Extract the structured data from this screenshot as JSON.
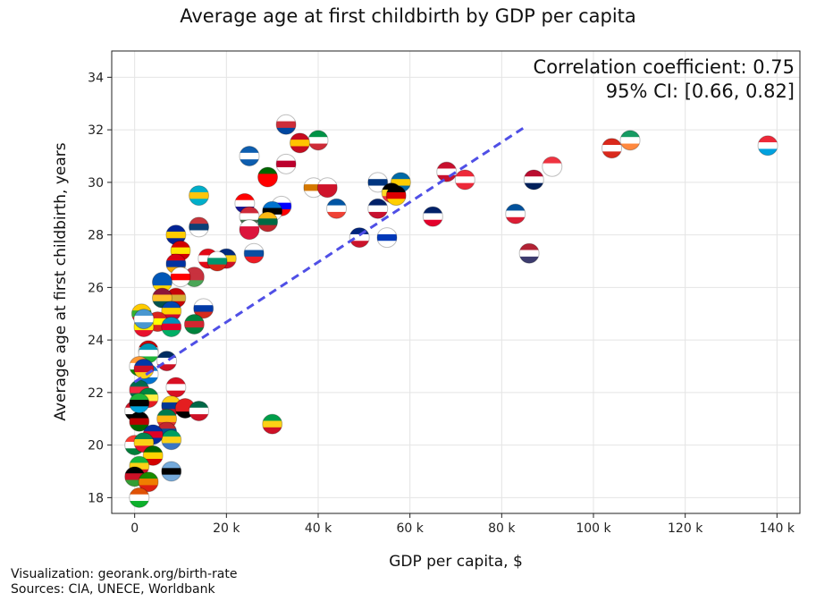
{
  "chart_data": {
    "type": "scatter",
    "title": "Average age at first childbirth by GDP per capita",
    "xlabel": "GDP per capita, $",
    "ylabel": "Average age at first childbirth, years",
    "xlim": [
      -5000,
      145000
    ],
    "ylim": [
      17.4,
      35.0
    ],
    "x_ticks": [
      0,
      20000,
      40000,
      60000,
      80000,
      100000,
      120000,
      140000
    ],
    "x_tick_labels": [
      "0",
      "20 k",
      "40 k",
      "60 k",
      "80 k",
      "100 k",
      "120 k",
      "140 k"
    ],
    "y_ticks": [
      18,
      20,
      22,
      24,
      26,
      28,
      30,
      32,
      34
    ],
    "y_tick_labels": [
      "18",
      "20",
      "22",
      "24",
      "26",
      "28",
      "30",
      "32",
      "34"
    ],
    "grid": true,
    "annotation": [
      "Correlation coefficient: 0.75",
      "95% CI: [0.66, 0.82]"
    ],
    "trendline": {
      "x": [
        0,
        85000
      ],
      "y": [
        22.4,
        32.1
      ],
      "color": "#4f4fe6",
      "style": "dashed"
    },
    "points": [
      {
        "x": 33000,
        "y": 32.2,
        "name": "South Korea",
        "colors": [
          "#ffffff",
          "#cd2e3a",
          "#0047a0"
        ]
      },
      {
        "x": 40000,
        "y": 31.6,
        "name": "Italy",
        "colors": [
          "#009246",
          "#ffffff",
          "#ce2b37"
        ]
      },
      {
        "x": 36000,
        "y": 31.5,
        "name": "Spain",
        "colors": [
          "#c60b1e",
          "#ffc400",
          "#c60b1e"
        ]
      },
      {
        "x": 25000,
        "y": 31.0,
        "name": "Greece",
        "colors": [
          "#0d5eaf",
          "#ffffff",
          "#0d5eaf"
        ]
      },
      {
        "x": 33000,
        "y": 30.7,
        "name": "Japan",
        "colors": [
          "#ffffff",
          "#bc002d",
          "#ffffff"
        ]
      },
      {
        "x": 29000,
        "y": 30.2,
        "name": "Portugal",
        "colors": [
          "#006600",
          "#ff0000",
          "#ff0000"
        ]
      },
      {
        "x": 39000,
        "y": 29.8,
        "name": "Cyprus",
        "colors": [
          "#ffffff",
          "#d57800",
          "#ffffff"
        ]
      },
      {
        "x": 42000,
        "y": 29.8,
        "name": "Malta",
        "colors": [
          "#ffffff",
          "#cf142b",
          "#cf142b"
        ]
      },
      {
        "x": 14000,
        "y": 29.5,
        "name": "Kazakhstan",
        "colors": [
          "#00afca",
          "#fec50c",
          "#00afca"
        ]
      },
      {
        "x": 24000,
        "y": 29.2,
        "name": "Croatia",
        "colors": [
          "#ff0000",
          "#ffffff",
          "#171796"
        ]
      },
      {
        "x": 32000,
        "y": 29.1,
        "name": "Slovenia",
        "colors": [
          "#ffffff",
          "#0000ff",
          "#ff0000"
        ]
      },
      {
        "x": 30000,
        "y": 28.9,
        "name": "Estonia",
        "colors": [
          "#0072ce",
          "#000000",
          "#ffffff"
        ]
      },
      {
        "x": 25000,
        "y": 28.7,
        "name": "Hungary",
        "colors": [
          "#ce2939",
          "#ffffff",
          "#477050"
        ]
      },
      {
        "x": 44000,
        "y": 29.0,
        "name": "France",
        "colors": [
          "#0055a4",
          "#ffffff",
          "#ef4135"
        ]
      },
      {
        "x": 53000,
        "y": 30.0,
        "name": "Finland",
        "colors": [
          "#ffffff",
          "#003580",
          "#ffffff"
        ]
      },
      {
        "x": 58000,
        "y": 30.0,
        "name": "Sweden",
        "colors": [
          "#006aa7",
          "#fecc00",
          "#006aa7"
        ]
      },
      {
        "x": 56000,
        "y": 29.6,
        "name": "Belgium",
        "colors": [
          "#000000",
          "#fdda24",
          "#ef3340"
        ]
      },
      {
        "x": 57000,
        "y": 29.5,
        "name": "Germany",
        "colors": [
          "#000000",
          "#dd0000",
          "#ffce00"
        ]
      },
      {
        "x": 53000,
        "y": 29.0,
        "name": "United Kingdom",
        "colors": [
          "#012169",
          "#ffffff",
          "#c8102e"
        ]
      },
      {
        "x": 68000,
        "y": 30.4,
        "name": "Denmark",
        "colors": [
          "#c8102e",
          "#ffffff",
          "#c8102e"
        ]
      },
      {
        "x": 72000,
        "y": 30.1,
        "name": "Austria",
        "colors": [
          "#ed2939",
          "#ffffff",
          "#ed2939"
        ]
      },
      {
        "x": 87000,
        "y": 30.1,
        "name": "Norway",
        "colors": [
          "#ba0c2f",
          "#ffffff",
          "#00205b"
        ]
      },
      {
        "x": 91000,
        "y": 30.6,
        "name": "Singapore",
        "colors": [
          "#ef3340",
          "#ffffff",
          "#ffffff"
        ]
      },
      {
        "x": 104000,
        "y": 31.3,
        "name": "Switzerland",
        "colors": [
          "#da291c",
          "#ffffff",
          "#da291c"
        ]
      },
      {
        "x": 108000,
        "y": 31.6,
        "name": "Ireland",
        "colors": [
          "#169b62",
          "#ffffff",
          "#ff883e"
        ]
      },
      {
        "x": 138000,
        "y": 31.4,
        "name": "Luxembourg",
        "colors": [
          "#ed2939",
          "#ffffff",
          "#00a1de"
        ]
      },
      {
        "x": 65000,
        "y": 28.7,
        "name": "Australia",
        "colors": [
          "#012169",
          "#ffffff",
          "#e4002b"
        ]
      },
      {
        "x": 83000,
        "y": 28.8,
        "name": "Iceland",
        "colors": [
          "#02529c",
          "#ffffff",
          "#dc1e35"
        ]
      },
      {
        "x": 86000,
        "y": 27.3,
        "name": "United States",
        "colors": [
          "#b22234",
          "#ffffff",
          "#3c3b6e"
        ]
      },
      {
        "x": 49000,
        "y": 27.9,
        "name": "New Zealand",
        "colors": [
          "#00247d",
          "#ffffff",
          "#cc142b"
        ]
      },
      {
        "x": 55000,
        "y": 27.9,
        "name": "Israel",
        "colors": [
          "#ffffff",
          "#0038b8",
          "#ffffff"
        ]
      },
      {
        "x": 29000,
        "y": 28.5,
        "name": "Lithuania",
        "colors": [
          "#fdb913",
          "#006a44",
          "#c1272d"
        ]
      },
      {
        "x": 25000,
        "y": 28.2,
        "name": "Poland",
        "colors": [
          "#ffffff",
          "#dc143c",
          "#dc143c"
        ]
      },
      {
        "x": 26000,
        "y": 27.3,
        "name": "Slovakia",
        "colors": [
          "#ffffff",
          "#0b4ea2",
          "#ee1c25"
        ]
      },
      {
        "x": 20000,
        "y": 27.1,
        "name": "Romania",
        "colors": [
          "#002b7f",
          "#fcd116",
          "#ce1126"
        ]
      },
      {
        "x": 16000,
        "y": 27.1,
        "name": "Turkey",
        "colors": [
          "#e30a17",
          "#ffffff",
          "#e30a17"
        ]
      },
      {
        "x": 18000,
        "y": 27.0,
        "name": "Bulgaria",
        "colors": [
          "#ffffff",
          "#00966e",
          "#d62612"
        ]
      },
      {
        "x": 14000,
        "y": 28.3,
        "name": "Serbia",
        "colors": [
          "#c6363c",
          "#0c4076",
          "#ffffff"
        ]
      },
      {
        "x": 9000,
        "y": 28.0,
        "name": "Bosnia",
        "colors": [
          "#002395",
          "#fecb00",
          "#002395"
        ]
      },
      {
        "x": 10000,
        "y": 27.4,
        "name": "North Macedonia",
        "colors": [
          "#d20000",
          "#ffe600",
          "#d20000"
        ]
      },
      {
        "x": 9000,
        "y": 26.9,
        "name": "Armenia",
        "colors": [
          "#d90012",
          "#0033a0",
          "#f2a800"
        ]
      },
      {
        "x": 13000,
        "y": 26.4,
        "name": "Belarus",
        "colors": [
          "#c8313e",
          "#c8313e",
          "#4aa657"
        ]
      },
      {
        "x": 10000,
        "y": 26.4,
        "name": "Georgia",
        "colors": [
          "#ffffff",
          "#ff0000",
          "#ffffff"
        ]
      },
      {
        "x": 6000,
        "y": 26.2,
        "name": "Ukraine",
        "colors": [
          "#0057b7",
          "#0057b7",
          "#ffd700"
        ]
      },
      {
        "x": 9000,
        "y": 25.6,
        "name": "Montenegro",
        "colors": [
          "#c40308",
          "#d4af37",
          "#c40308"
        ]
      },
      {
        "x": 6000,
        "y": 25.6,
        "name": "Sri Lanka",
        "colors": [
          "#8d153a",
          "#ffbe29",
          "#00534e"
        ]
      },
      {
        "x": 15000,
        "y": 25.2,
        "name": "Russia",
        "colors": [
          "#ffffff",
          "#0039a6",
          "#d52b1e"
        ]
      },
      {
        "x": 8000,
        "y": 25.1,
        "name": "Moldova",
        "colors": [
          "#0046ae",
          "#ffd200",
          "#cc092f"
        ]
      },
      {
        "x": 1500,
        "y": 25.0,
        "name": "Myanmar",
        "colors": [
          "#fecb00",
          "#34b233",
          "#ea2839"
        ]
      },
      {
        "x": 5000,
        "y": 24.7,
        "name": "Vietnam",
        "colors": [
          "#da251d",
          "#ffff00",
          "#da251d"
        ]
      },
      {
        "x": 13000,
        "y": 24.6,
        "name": "Turkmenistan",
        "colors": [
          "#00843d",
          "#d22630",
          "#00843d"
        ]
      },
      {
        "x": 8000,
        "y": 24.5,
        "name": "Azerbaijan",
        "colors": [
          "#0092bc",
          "#e4002b",
          "#00af66"
        ]
      },
      {
        "x": 2000,
        "y": 24.5,
        "name": "Kyrgyzstan",
        "colors": [
          "#e8112d",
          "#ffef00",
          "#e8112d"
        ]
      },
      {
        "x": 3000,
        "y": 23.6,
        "name": "Tajikistan",
        "colors": [
          "#cc0000",
          "#ffffff",
          "#006600"
        ]
      },
      {
        "x": 3000,
        "y": 23.5,
        "name": "Uzbekistan",
        "colors": [
          "#0099b5",
          "#ffffff",
          "#1eb53a"
        ]
      },
      {
        "x": 7000,
        "y": 23.2,
        "name": "Dominican Republic",
        "colors": [
          "#002d62",
          "#ffffff",
          "#ce1126"
        ]
      },
      {
        "x": 1000,
        "y": 23.0,
        "name": "India",
        "colors": [
          "#ff9933",
          "#ffffff",
          "#138808"
        ]
      },
      {
        "x": 3000,
        "y": 22.7,
        "name": "Honduras",
        "colors": [
          "#0073cf",
          "#ffffff",
          "#0073cf"
        ]
      },
      {
        "x": 1000,
        "y": 22.1,
        "name": "Bangladesh",
        "colors": [
          "#006a4e",
          "#f42a41",
          "#006a4e"
        ]
      },
      {
        "x": 9000,
        "y": 22.2,
        "name": "Peru",
        "colors": [
          "#d91023",
          "#ffffff",
          "#d91023"
        ]
      },
      {
        "x": 3000,
        "y": 21.8,
        "name": "Senegal",
        "colors": [
          "#00853f",
          "#fdef42",
          "#e31b23"
        ]
      },
      {
        "x": 8000,
        "y": 21.5,
        "name": "Colombia",
        "colors": [
          "#fcd116",
          "#003893",
          "#ce1126"
        ]
      },
      {
        "x": 11000,
        "y": 21.4,
        "name": "Albania",
        "colors": [
          "#e41e20",
          "#e41e20",
          "#000000"
        ]
      },
      {
        "x": 14000,
        "y": 21.3,
        "name": "Mexico",
        "colors": [
          "#006847",
          "#ffffff",
          "#ce1126"
        ]
      },
      {
        "x": 0,
        "y": 21.3,
        "name": "Yemen",
        "colors": [
          "#ce1126",
          "#ffffff",
          "#000000"
        ]
      },
      {
        "x": 7000,
        "y": 21.0,
        "name": "South Africa",
        "colors": [
          "#007a4d",
          "#ffb612",
          "#de3831"
        ]
      },
      {
        "x": 1000,
        "y": 20.9,
        "name": "Kenya",
        "colors": [
          "#000000",
          "#bb0000",
          "#006600"
        ]
      },
      {
        "x": 30000,
        "y": 20.8,
        "name": "Guyana",
        "colors": [
          "#009e49",
          "#fcd116",
          "#ce1126"
        ]
      },
      {
        "x": 7000,
        "y": 20.5,
        "name": "Mongolia",
        "colors": [
          "#c4272f",
          "#015197",
          "#c4272f"
        ]
      },
      {
        "x": 8000,
        "y": 20.2,
        "name": "Gabon",
        "colors": [
          "#009e60",
          "#fcd116",
          "#3a75c4"
        ]
      },
      {
        "x": 4000,
        "y": 20.4,
        "name": "Cambodia",
        "colors": [
          "#032ea1",
          "#e00025",
          "#032ea1"
        ]
      },
      {
        "x": 0,
        "y": 20.0,
        "name": "Madagascar",
        "colors": [
          "#fc3d32",
          "#ffffff",
          "#007e3a"
        ]
      },
      {
        "x": 2000,
        "y": 20.1,
        "name": "Benin",
        "colors": [
          "#008751",
          "#fcd116",
          "#e8112d"
        ]
      },
      {
        "x": 4000,
        "y": 19.6,
        "name": "Zimbabwe",
        "colors": [
          "#006400",
          "#ffd200",
          "#d40000"
        ]
      },
      {
        "x": 8000,
        "y": 19.0,
        "name": "Botswana",
        "colors": [
          "#75aadb",
          "#000000",
          "#75aadb"
        ]
      },
      {
        "x": 1000,
        "y": 19.2,
        "name": "Mali",
        "colors": [
          "#14b53a",
          "#fcd116",
          "#ce1126"
        ]
      },
      {
        "x": 0,
        "y": 18.8,
        "name": "Malawi",
        "colors": [
          "#000000",
          "#ce1126",
          "#339e35"
        ]
      },
      {
        "x": 3000,
        "y": 18.6,
        "name": "Zambia",
        "colors": [
          "#198a00",
          "#ef7d00",
          "#de2010"
        ]
      },
      {
        "x": 1000,
        "y": 18.0,
        "name": "Niger",
        "colors": [
          "#e05206",
          "#ffffff",
          "#0db02b"
        ]
      },
      {
        "x": 2000,
        "y": 24.8,
        "name": "Guatemala",
        "colors": [
          "#4997d0",
          "#ffffff",
          "#4997d0"
        ]
      },
      {
        "x": 1000,
        "y": 21.6,
        "name": "Tanzania",
        "colors": [
          "#1eb53a",
          "#000000",
          "#00a3dd"
        ]
      },
      {
        "x": 2000,
        "y": 22.9,
        "name": "Philippines",
        "colors": [
          "#0038a8",
          "#ce1126",
          "#fcd116"
        ]
      }
    ]
  },
  "footer": {
    "line1": "Visualization: georank.org/birth-rate",
    "line2": "Sources: CIA, UNECE, Worldbank"
  }
}
